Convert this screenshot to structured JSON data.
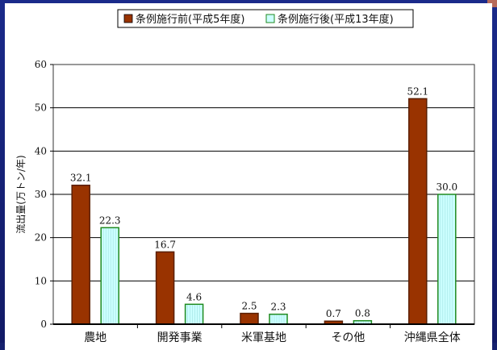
{
  "chart_data": {
    "type": "bar",
    "categories": [
      "農地",
      "開発事業",
      "米軍基地",
      "その他",
      "沖縄県全体"
    ],
    "series": [
      {
        "name": "条例施行前(平成5年度)",
        "values": [
          32.1,
          16.7,
          2.5,
          0.7,
          52.1
        ],
        "color": "#993300"
      },
      {
        "name": "条例施行後(平成13年度)",
        "values": [
          22.3,
          4.6,
          2.3,
          0.8,
          30.0
        ],
        "color": "#ccffff"
      }
    ],
    "value_labels": [
      [
        "32.1",
        "16.7",
        "2.5",
        "0.7",
        "52.1"
      ],
      [
        "22.3",
        "4.6",
        "2.3",
        "0.8",
        "30.0"
      ]
    ],
    "ylabel": "流出量(万トン/年)",
    "ylim": [
      0,
      60
    ],
    "yticks": [
      0,
      10,
      20,
      30,
      40,
      50,
      60
    ],
    "grid": true,
    "legend_position": "top-center"
  }
}
